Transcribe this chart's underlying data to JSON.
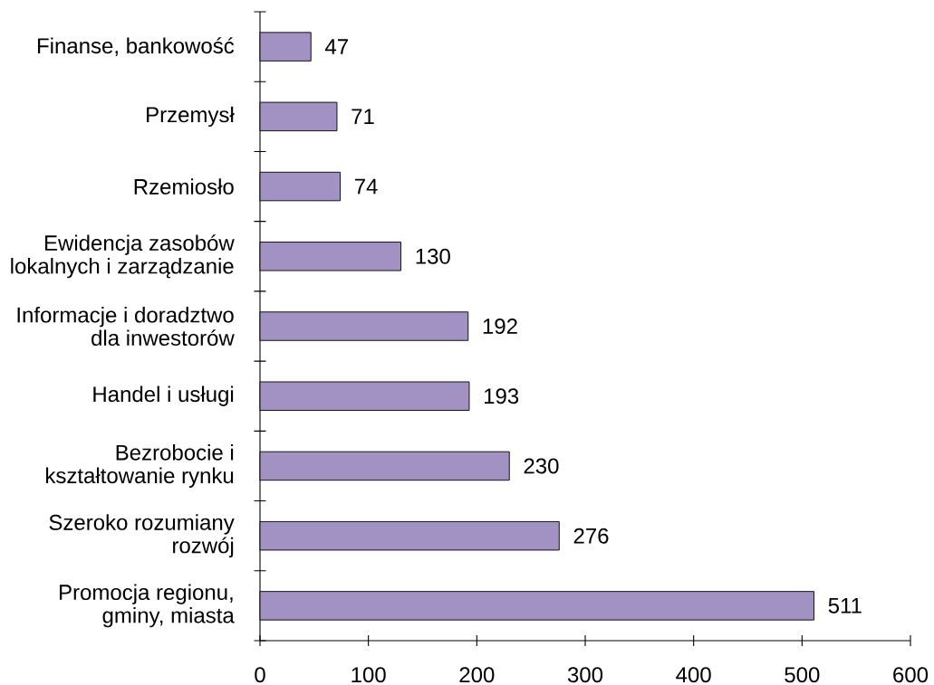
{
  "chart_data": {
    "type": "bar",
    "orientation": "horizontal",
    "categories": [
      "Finanse, bankowość",
      "Przemysł",
      "Rzemiosło",
      "Ewidencja zasobów lokalnych i zarządzanie",
      "Informacje i doradztwo dla inwestorów",
      "Handel i usługi",
      "Bezrobocie i kształtowanie rynku",
      "Szeroko rozumiany rozwój",
      "Promocja regionu, gminy, miasta"
    ],
    "values": [
      47,
      71,
      74,
      130,
      192,
      193,
      230,
      276,
      511
    ],
    "color": "#a292c4",
    "xlim": [
      0,
      600
    ],
    "xticks": [
      0,
      100,
      200,
      300,
      400,
      500,
      600
    ],
    "data_labels": true
  }
}
